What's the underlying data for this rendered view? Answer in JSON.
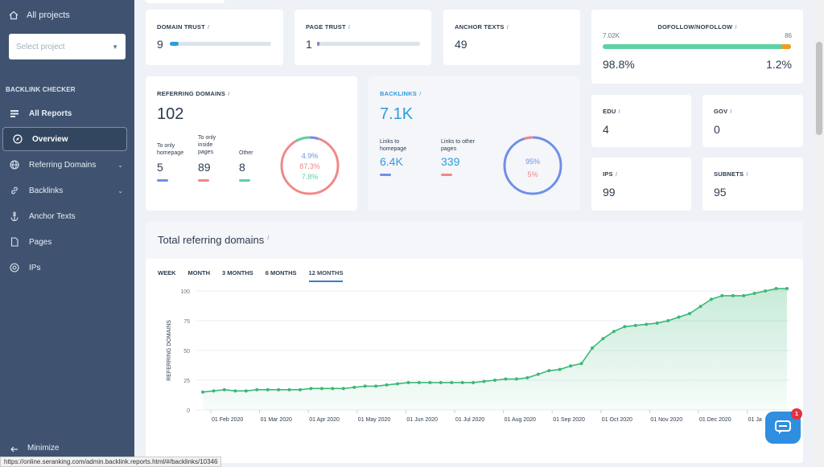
{
  "sidebar": {
    "all_projects": "All projects",
    "select_placeholder": "Select project",
    "section": "BACKLINK CHECKER",
    "items": [
      {
        "label": "All Reports",
        "icon": "reports-icon"
      },
      {
        "label": "Overview",
        "icon": "compass-icon"
      },
      {
        "label": "Referring Domains",
        "icon": "globe-icon"
      },
      {
        "label": "Backlinks",
        "icon": "link-icon"
      },
      {
        "label": "Anchor Texts",
        "icon": "anchor-icon"
      },
      {
        "label": "Pages",
        "icon": "page-icon"
      },
      {
        "label": "IPs",
        "icon": "ip-icon"
      }
    ],
    "minimize": "Minimize"
  },
  "metrics": {
    "domain_trust": {
      "label": "DOMAIN TRUST",
      "value": "9",
      "level": 0.09
    },
    "page_trust": {
      "label": "PAGE TRUST",
      "value": "1",
      "level": 0.01
    },
    "anchor_texts": {
      "label": "ANCHOR TEXTS",
      "value": "49"
    },
    "dofollow": {
      "label": "DOFOLLOW/NOFOLLOW",
      "left_count": "7.02K",
      "right_count": "86",
      "left_pct": "98.8%",
      "right_pct": "1.2%"
    },
    "edu": {
      "label": "EDU",
      "value": "4"
    },
    "gov": {
      "label": "GOV",
      "value": "0"
    },
    "ips": {
      "label": "IPS",
      "value": "99"
    },
    "subnets": {
      "label": "SUBNETS",
      "value": "95"
    }
  },
  "referring_domains": {
    "label": "REFERRING DOMAINS",
    "value": "102",
    "cols": [
      {
        "label_lines": [
          "To only",
          "homepage"
        ],
        "value": "5",
        "color": "#6f8fe8"
      },
      {
        "label_lines": [
          "To only",
          "inside",
          "pages"
        ],
        "value": "89",
        "color": "#f0888a"
      },
      {
        "label_lines": [
          "Other"
        ],
        "value": "8",
        "color": "#62d0a0"
      }
    ],
    "donut": {
      "p1": "4.9%",
      "p2": "87.3%",
      "p3": "7.8%"
    }
  },
  "backlinks": {
    "label": "BACKLINKS",
    "value": "7.1K",
    "cols": [
      {
        "label_lines": [
          "Links to",
          "homepage"
        ],
        "value": "6.4K",
        "color": "#6f8fe8"
      },
      {
        "label_lines": [
          "Links to other",
          "pages"
        ],
        "value": "339",
        "color": "#f0888a"
      }
    ],
    "donut": {
      "p1": "95%",
      "p2": "5%"
    }
  },
  "chart_section": {
    "title": "Total referring domains",
    "tabs": [
      "WEEK",
      "MONTH",
      "3 MONTHS",
      "6 MONTHS",
      "12 MONTHS"
    ],
    "active_tab": "12 MONTHS"
  },
  "chart_data": {
    "type": "area",
    "ylabel": "REFERRING DOMAINS",
    "ylim": [
      0,
      100
    ],
    "yticks": [
      "0",
      "25",
      "50",
      "75",
      "100"
    ],
    "xticks": [
      "01 Feb 2020",
      "01 Mar 2020",
      "01 Apr 2020",
      "01 May 2020",
      "01 Jun 2020",
      "01 Jul 2020",
      "01 Aug 2020",
      "01 Sep 2020",
      "01 Oct 2020",
      "01 Nov 2020",
      "01 Dec 2020",
      "01 Ja"
    ],
    "values": [
      15,
      16,
      17,
      16,
      16,
      17,
      17,
      17,
      17,
      17,
      18,
      18,
      18,
      18,
      19,
      20,
      20,
      21,
      22,
      23,
      23,
      23,
      23,
      23,
      23,
      23,
      24,
      25,
      26,
      26,
      27,
      30,
      33,
      34,
      37,
      39,
      52,
      60,
      66,
      70,
      71,
      72,
      73,
      75,
      78,
      81,
      87,
      93,
      96,
      96,
      96,
      98,
      100,
      102,
      102
    ]
  },
  "colors": {
    "accent": "#2d9cdb",
    "green": "#3cb878",
    "sidebar": "#3f5370"
  },
  "chat": {
    "badge": "1"
  },
  "status_url": "https://online.seranking.com/admin.backlink.reports.html/#/backlinks/10346"
}
